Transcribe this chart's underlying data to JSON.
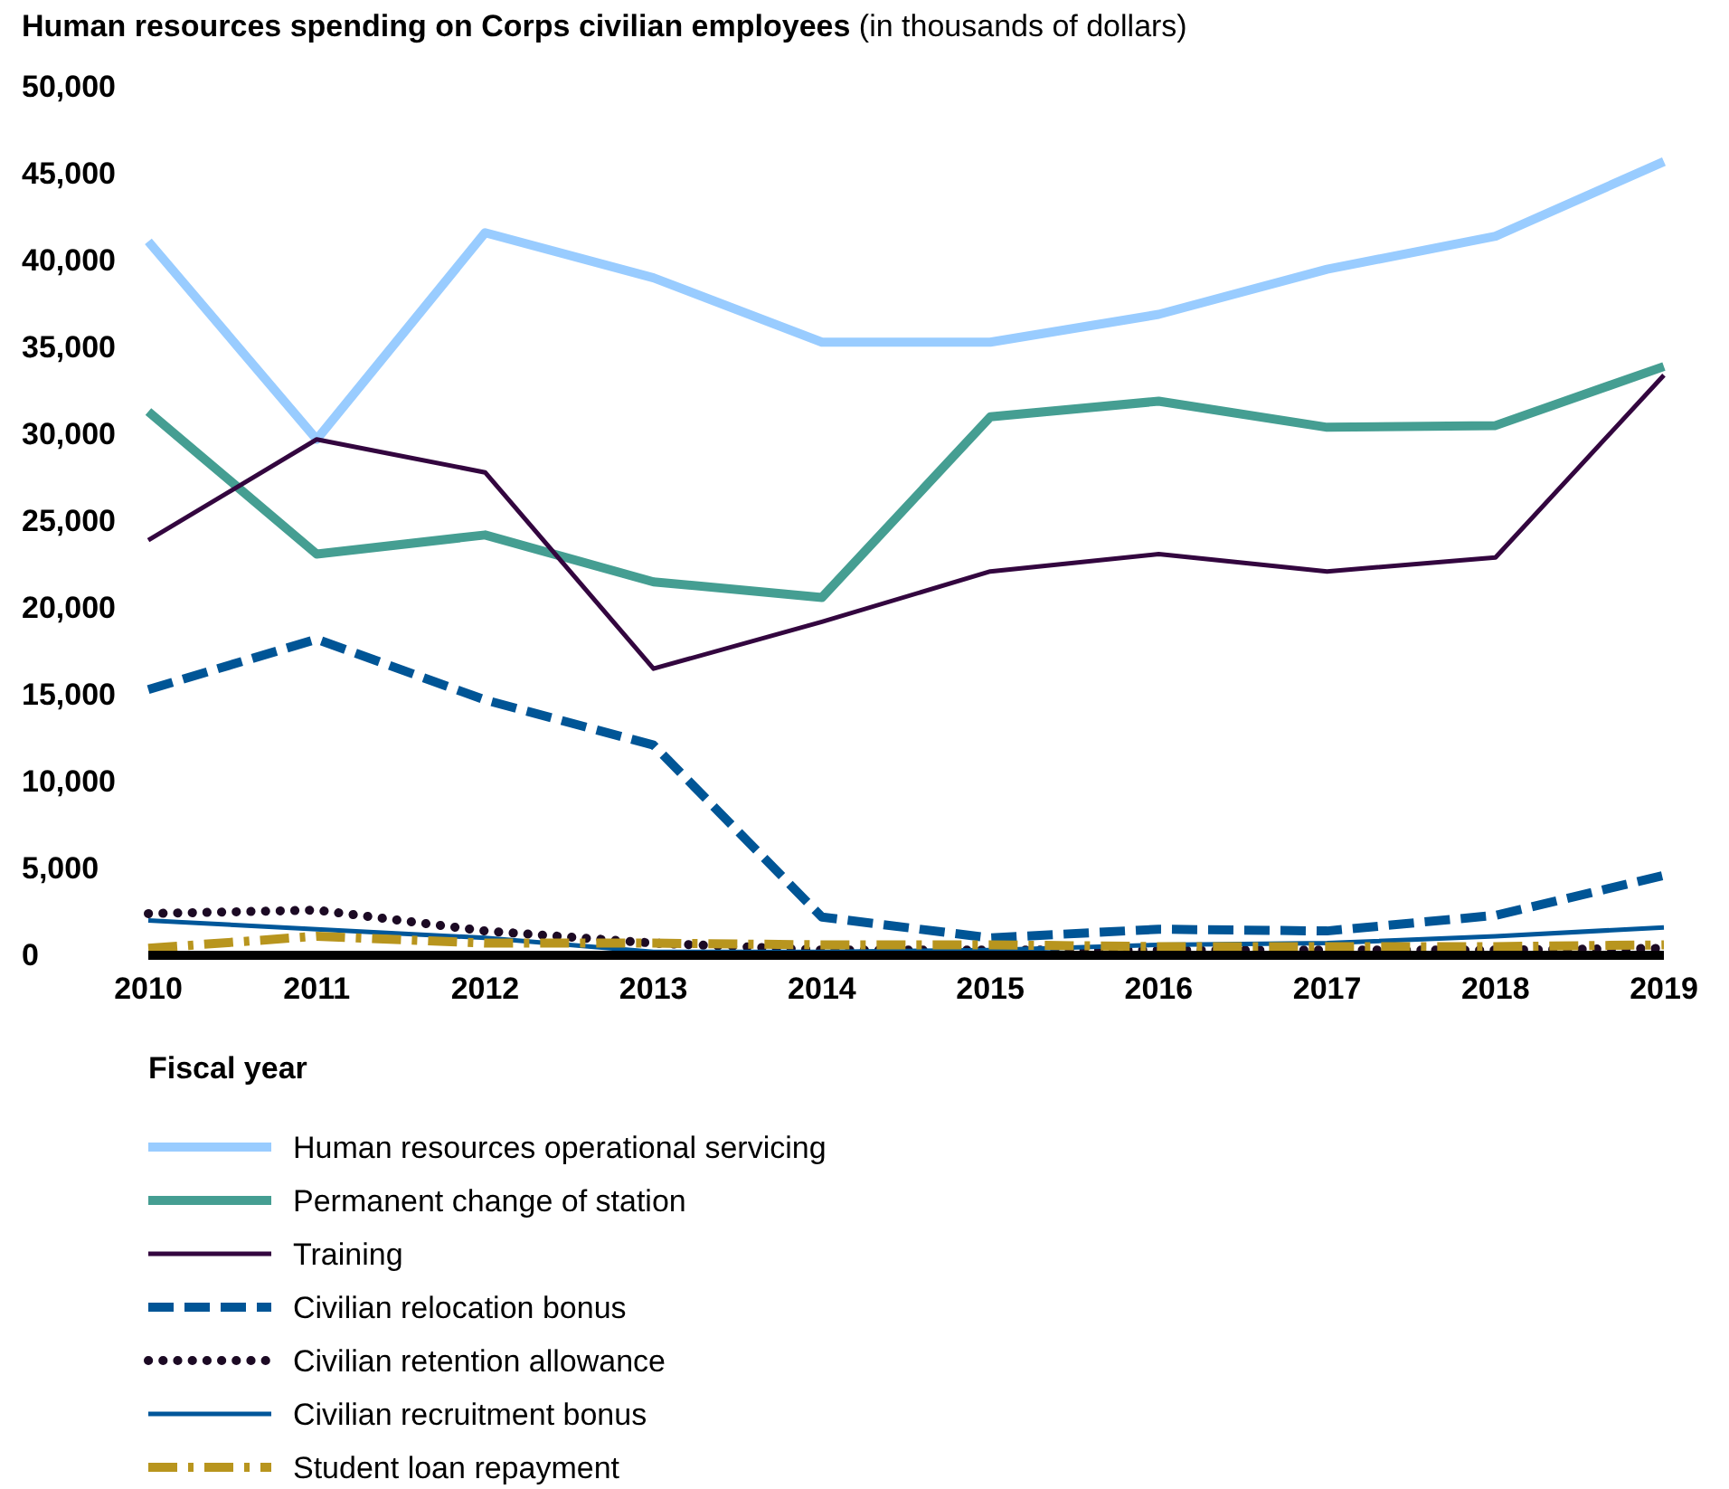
{
  "chart_data": {
    "type": "line",
    "title": "Human resources spending on Corps civilian employees",
    "subtitle": "(in thousands of dollars)",
    "xlabel": "Fiscal year",
    "categories": [
      "2010",
      "2011",
      "2012",
      "2013",
      "2014",
      "2015",
      "2016",
      "2017",
      "2018",
      "2019"
    ],
    "ylim": [
      0,
      50000
    ],
    "yticks": [
      0,
      {
        "value": 5000,
        "label": "5,000"
      },
      {
        "value": 10000,
        "label": "10,000"
      },
      {
        "value": 15000,
        "label": "15,000"
      },
      {
        "value": 20000,
        "label": "20,000"
      },
      {
        "value": 25000,
        "label": "25,000"
      },
      {
        "value": 30000,
        "label": "30,000"
      },
      {
        "value": 35000,
        "label": "35,000"
      },
      {
        "value": 40000,
        "label": "40,000"
      },
      {
        "value": 45000,
        "label": "45,000"
      },
      {
        "value": 50000,
        "label": "50,000"
      }
    ],
    "legend": "bottom",
    "grid": false,
    "series": [
      {
        "name": "Human resources operational servicing",
        "color": "#99ccff",
        "line_style": "solid",
        "values": [
          41100,
          29700,
          41600,
          39000,
          35300,
          35300,
          36900,
          39500,
          41400,
          45700
        ]
      },
      {
        "name": "Permanent change of station",
        "color": "#459e92",
        "line_style": "solid",
        "values": [
          31300,
          23100,
          24200,
          21500,
          20600,
          31000,
          31900,
          30400,
          30500,
          33900
        ]
      },
      {
        "name": "Training",
        "color": "#33063f",
        "line_style": "solid",
        "values": [
          23900,
          29700,
          27800,
          16500,
          19200,
          22100,
          23100,
          22100,
          22900,
          33400
        ]
      },
      {
        "name": "Civilian relocation bonus",
        "color": "#005596",
        "line_style": "dashed",
        "values": [
          15300,
          18200,
          14700,
          12100,
          2200,
          1000,
          1500,
          1400,
          2300,
          4600
        ]
      },
      {
        "name": "Civilian retention allowance",
        "color": "#1c0a24",
        "line_style": "dotted",
        "values": [
          2400,
          2600,
          1400,
          700,
          300,
          300,
          300,
          300,
          300,
          400
        ]
      },
      {
        "name": "Civilian recruitment bonus",
        "color": "#00579a",
        "line_style": "solid",
        "values": [
          2000,
          1500,
          1000,
          200,
          200,
          300,
          600,
          700,
          1100,
          1600
        ]
      },
      {
        "name": "Student loan repayment",
        "color": "#b8951e",
        "line_style": "dashdot",
        "values": [
          400,
          1100,
          700,
          700,
          600,
          600,
          500,
          500,
          500,
          600
        ]
      }
    ]
  }
}
